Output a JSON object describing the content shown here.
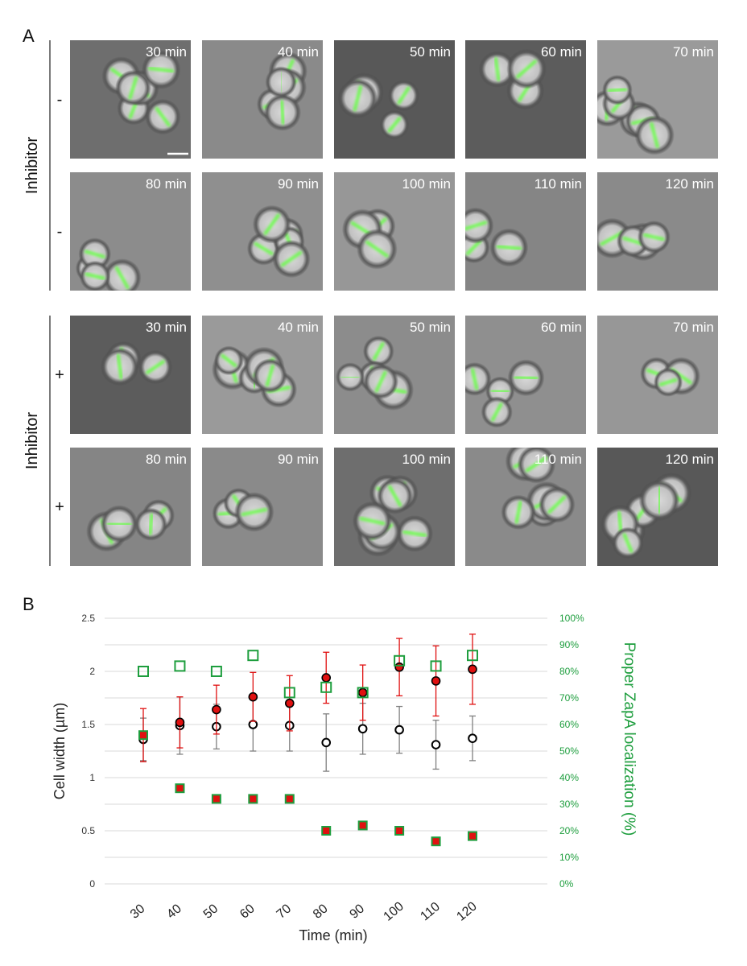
{
  "panel_a": {
    "label": "A",
    "groups": [
      {
        "side_label": "Inhibitor",
        "rows": [
          {
            "sign": "-",
            "times": [
              "30 min",
              "40 min",
              "50 min",
              "60 min",
              "70 min"
            ]
          },
          {
            "sign": "-",
            "times": [
              "80 min",
              "90 min",
              "100 min",
              "110 min",
              "120 min"
            ]
          }
        ]
      },
      {
        "side_label": "Inhibitor",
        "rows": [
          {
            "sign": "+",
            "times": [
              "30 min",
              "40 min",
              "50 min",
              "60 min",
              "70 min"
            ]
          },
          {
            "sign": "+",
            "times": [
              "80 min",
              "90 min",
              "100 min",
              "110 min",
              "120 min"
            ]
          }
        ]
      }
    ]
  },
  "panel_b": {
    "label": "B"
  },
  "chart_data": {
    "type": "scatter",
    "x": [
      30,
      40,
      50,
      60,
      70,
      80,
      90,
      100,
      110,
      120
    ],
    "xlabel": "Time (min)",
    "ylabel": "Cell width (µm)",
    "y2label": "Proper ZapA localization (%)",
    "ylim": [
      0,
      2.5
    ],
    "y2lim": [
      0,
      100
    ],
    "yticks": [
      "0",
      "0.5",
      "1",
      "1.5",
      "2",
      "2.5"
    ],
    "y2ticks": [
      "0%",
      "10%",
      "20%",
      "30%",
      "40%",
      "50%",
      "60%",
      "70%",
      "80%",
      "90%",
      "100%"
    ],
    "grid": true,
    "series": [
      {
        "axis": "left",
        "marker": "open-circle",
        "color": "#000000",
        "errcolor": "#808080",
        "values": [
          1.36,
          1.49,
          1.48,
          1.5,
          1.49,
          1.33,
          1.46,
          1.45,
          1.31,
          1.37
        ],
        "errors": [
          0.2,
          0.27,
          0.21,
          0.25,
          0.24,
          0.27,
          0.24,
          0.22,
          0.23,
          0.21
        ]
      },
      {
        "axis": "left",
        "marker": "filled-circle",
        "color": "#e01010",
        "errcolor": "#e01010",
        "values": [
          1.4,
          1.52,
          1.64,
          1.76,
          1.7,
          1.94,
          1.8,
          2.04,
          1.91,
          2.02
        ],
        "errors": [
          0.25,
          0.24,
          0.23,
          0.23,
          0.26,
          0.24,
          0.26,
          0.27,
          0.33,
          0.33
        ]
      },
      {
        "axis": "right",
        "marker": "open-square",
        "color": "#1e9e3e",
        "values": [
          80,
          82,
          80,
          86,
          72,
          74,
          72,
          84,
          82,
          86
        ]
      },
      {
        "axis": "right",
        "marker": "filled-square",
        "color": "#e01010",
        "edgecolor": "#1e9e3e",
        "values": [
          56,
          36,
          32,
          32,
          32,
          20,
          22,
          20,
          16,
          18
        ]
      }
    ]
  }
}
